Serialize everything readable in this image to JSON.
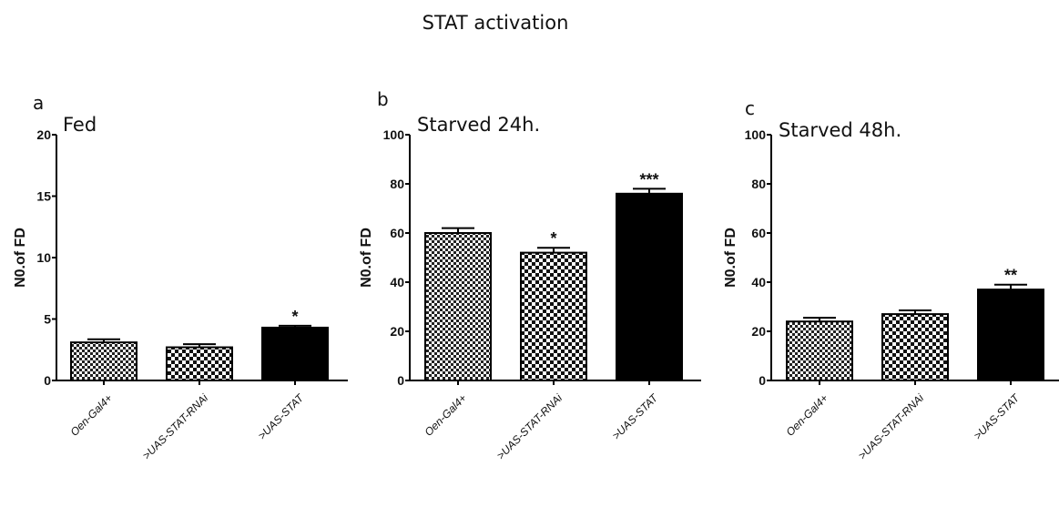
{
  "title": "STAT activation",
  "chart_data": [
    {
      "type": "bar",
      "panel": "a",
      "subtitle": "Fed",
      "ylabel": "N0.of FD",
      "ylim": [
        0,
        20
      ],
      "yticks": [
        0,
        5,
        10,
        15,
        20
      ],
      "categories": [
        "Oen-Gal4+",
        ">UAS-STAT-RNAi",
        ">UAS-STAT"
      ],
      "values": [
        3.1,
        2.7,
        4.3
      ],
      "errors": [
        0.25,
        0.25,
        0.15
      ],
      "significance": [
        "",
        "",
        "*"
      ]
    },
    {
      "type": "bar",
      "panel": "b",
      "subtitle": "Starved 24h.",
      "ylabel": "N0.of FD",
      "ylim": [
        0,
        100
      ],
      "yticks": [
        0,
        20,
        40,
        60,
        80,
        100
      ],
      "categories": [
        "Oen-Gal4+",
        ">UAS-STAT-RNAi",
        ">UAS-STAT"
      ],
      "values": [
        60,
        52,
        76
      ],
      "errors": [
        2,
        2,
        2
      ],
      "significance": [
        "",
        "*",
        "***"
      ]
    },
    {
      "type": "bar",
      "panel": "c",
      "subtitle": "Starved 48h.",
      "ylabel": "N0.of FD",
      "ylim": [
        0,
        100
      ],
      "yticks": [
        0,
        20,
        40,
        60,
        80,
        100
      ],
      "categories": [
        "Oen-Gal4+",
        ">UAS-STAT-RNAi",
        ">UAS-STAT"
      ],
      "values": [
        24,
        27,
        37
      ],
      "errors": [
        1.5,
        1.5,
        2
      ],
      "significance": [
        "",
        "",
        "**"
      ]
    }
  ],
  "bar_styles": [
    "fine-check",
    "coarse-check",
    "solid"
  ]
}
